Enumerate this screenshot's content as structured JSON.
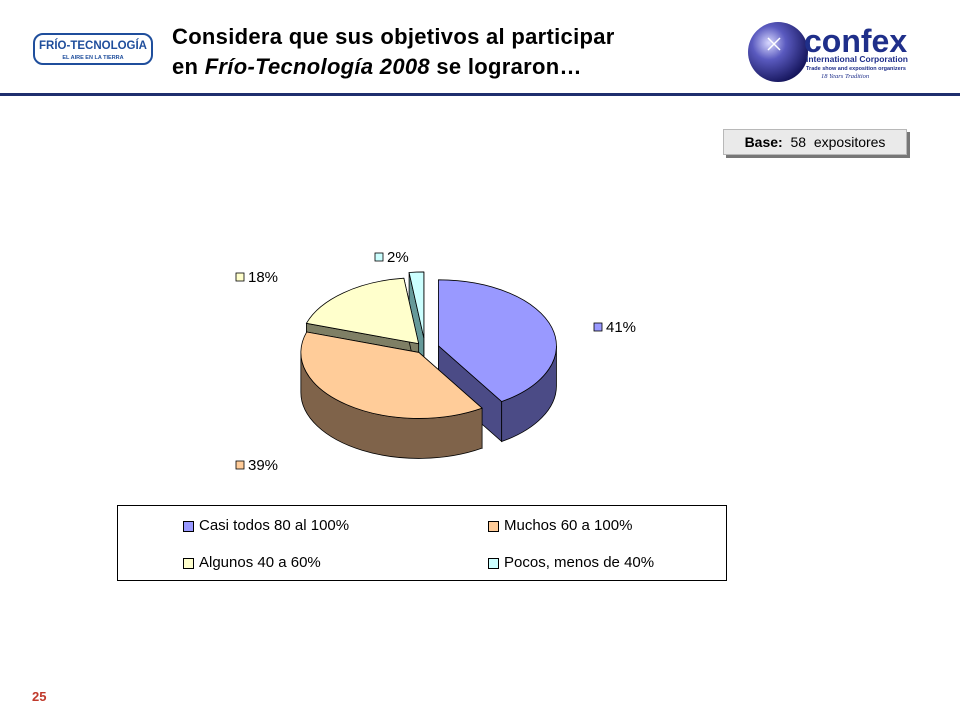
{
  "header": {
    "title_line1": "Considera que sus objetivos al participar",
    "title_line2_prefix": "en ",
    "title_line2_italic": "Frío-Tecnología 2008",
    "title_line2_suffix": " se lograron…",
    "logo_left": {
      "name": "FRÍO-TECNOLOGÍA",
      "tagline": "EL AIRE EN LA TIERRA"
    },
    "logo_right": {
      "name": "confex",
      "subtitle": "International Corporation",
      "tagline": "Trade show and exposition organizers",
      "tradition": "18 Years Tradition"
    }
  },
  "base": {
    "label": "Base:",
    "value": "58",
    "unit": "expositores"
  },
  "chart_data": {
    "type": "pie",
    "title": "",
    "categories": [
      "Casi todos 80 al 100%",
      "Muchos 60 a 100%",
      "Algunos 40 a 60%",
      "Pocos, menos de 40%"
    ],
    "values": [
      41,
      39,
      18,
      2
    ],
    "data_labels": [
      "41%",
      "39%",
      "18%",
      "2%"
    ],
    "colors": [
      "#9999ff",
      "#ffcc99",
      "#ffffcc",
      "#ccffff"
    ],
    "style": "3d-exploded",
    "legend_position": "bottom"
  },
  "page_number": "25"
}
